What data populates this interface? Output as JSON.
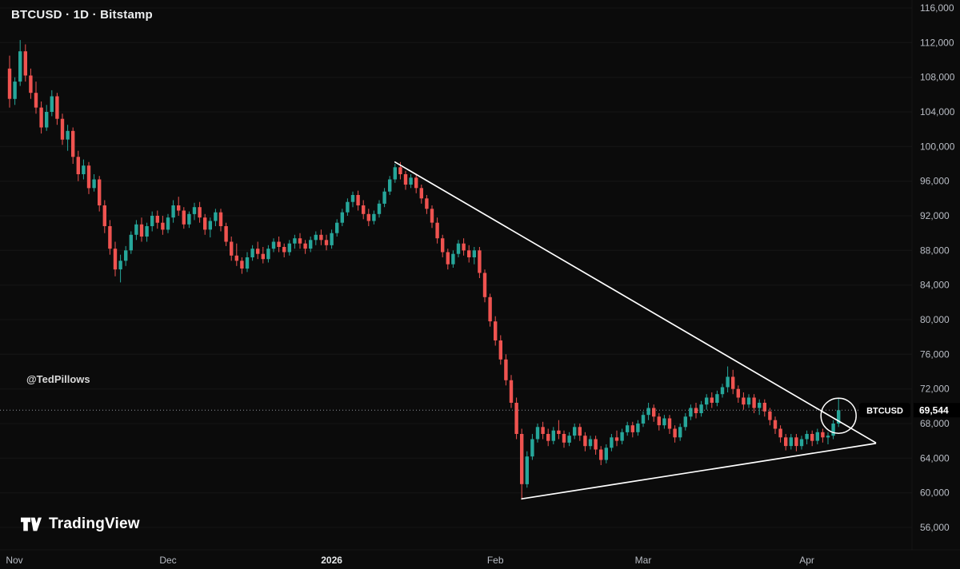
{
  "header": {
    "title": "BTCUSD · 1D · Bitstamp"
  },
  "watermark": {
    "text": "@TedPillows"
  },
  "logo": {
    "text": "TradingView"
  },
  "colors": {
    "background": "#0b0b0b",
    "up": "#26a69a",
    "down": "#ef5350",
    "trendline": "#ffffff",
    "axis_text": "#b9bdc5",
    "axis_text_emphasis": "#e6e8ea",
    "grid": "#161616",
    "price_line": "#8f939c",
    "label_bg": "#000000",
    "label_text": "#ffffff"
  },
  "chart_data": {
    "type": "candlestick",
    "symbol": "BTCUSD",
    "interval": "1D",
    "exchange": "Bitstamp",
    "last_price": 69544,
    "last_price_label": "69,544",
    "y_axis": {
      "tick_step": 4000,
      "ticks": [
        {
          "label": "116,000",
          "value": 116000
        },
        {
          "label": "112,000",
          "value": 112000
        },
        {
          "label": "108,000",
          "value": 108000
        },
        {
          "label": "104,000",
          "value": 104000
        },
        {
          "label": "100,000",
          "value": 100000
        },
        {
          "label": "96,000",
          "value": 96000
        },
        {
          "label": "92,000",
          "value": 92000
        },
        {
          "label": "88,000",
          "value": 88000
        },
        {
          "label": "84,000",
          "value": 84000
        },
        {
          "label": "80,000",
          "value": 80000
        },
        {
          "label": "76,000",
          "value": 76000
        },
        {
          "label": "72,000",
          "value": 72000
        },
        {
          "label": "68,000",
          "value": 68000
        },
        {
          "label": "64,000",
          "value": 64000
        },
        {
          "label": "60,000",
          "value": 60000
        },
        {
          "label": "56,000",
          "value": 56000
        }
      ]
    },
    "x_axis": {
      "labels": [
        {
          "label": "Nov",
          "index": 0,
          "emphasis": false
        },
        {
          "label": "Dec",
          "index": 30,
          "emphasis": false
        },
        {
          "label": "2026",
          "index": 61,
          "emphasis": true
        },
        {
          "label": "Feb",
          "index": 92,
          "emphasis": false
        },
        {
          "label": "Mar",
          "index": 120,
          "emphasis": false
        },
        {
          "label": "Apr",
          "index": 151,
          "emphasis": false
        }
      ]
    },
    "candles": [
      [
        109000,
        110500,
        104500,
        105500
      ],
      [
        105500,
        108000,
        104800,
        107500
      ],
      [
        107500,
        112300,
        107000,
        111000
      ],
      [
        111000,
        111800,
        107500,
        108200
      ],
      [
        108200,
        109000,
        105500,
        106200
      ],
      [
        106200,
        107500,
        103800,
        104500
      ],
      [
        104500,
        105200,
        101500,
        102200
      ],
      [
        102200,
        104800,
        101800,
        104000
      ],
      [
        104000,
        106500,
        103500,
        105800
      ],
      [
        105800,
        106200,
        102500,
        103200
      ],
      [
        103200,
        103800,
        100200,
        100800
      ],
      [
        100800,
        102500,
        99500,
        101800
      ],
      [
        101800,
        102200,
        98000,
        98800
      ],
      [
        98800,
        99500,
        96000,
        96800
      ],
      [
        96800,
        98500,
        96200,
        97800
      ],
      [
        97800,
        98200,
        94500,
        95200
      ],
      [
        95200,
        96800,
        94800,
        96200
      ],
      [
        96200,
        96600,
        92500,
        93200
      ],
      [
        93200,
        93800,
        90000,
        90800
      ],
      [
        90800,
        91500,
        87500,
        88200
      ],
      [
        88200,
        89000,
        85000,
        85800
      ],
      [
        85800,
        87500,
        84300,
        86800
      ],
      [
        86800,
        88500,
        86200,
        88000
      ],
      [
        88000,
        90200,
        87600,
        89800
      ],
      [
        89800,
        91500,
        89200,
        91000
      ],
      [
        91000,
        91800,
        89000,
        89600
      ],
      [
        89600,
        91200,
        89000,
        90800
      ],
      [
        90800,
        92500,
        90200,
        92000
      ],
      [
        92000,
        92600,
        90500,
        91200
      ],
      [
        91200,
        92000,
        89800,
        90400
      ],
      [
        90400,
        92200,
        90000,
        91800
      ],
      [
        91800,
        93800,
        91200,
        93200
      ],
      [
        93200,
        94200,
        92000,
        92600
      ],
      [
        92600,
        93000,
        90500,
        91000
      ],
      [
        91000,
        92500,
        90600,
        92200
      ],
      [
        92200,
        93500,
        91500,
        93000
      ],
      [
        93000,
        93600,
        91200,
        91800
      ],
      [
        91800,
        92200,
        89800,
        90400
      ],
      [
        90400,
        91800,
        89500,
        91400
      ],
      [
        91400,
        92800,
        90800,
        92400
      ],
      [
        92400,
        92800,
        90200,
        90800
      ],
      [
        90800,
        91200,
        88500,
        89000
      ],
      [
        89000,
        89600,
        86800,
        87400
      ],
      [
        87400,
        88800,
        86200,
        86800
      ],
      [
        86800,
        87200,
        85300,
        85900
      ],
      [
        85900,
        87800,
        85500,
        87200
      ],
      [
        87200,
        88600,
        86800,
        88200
      ],
      [
        88200,
        89000,
        87000,
        87600
      ],
      [
        87600,
        88400,
        86500,
        87000
      ],
      [
        87000,
        88600,
        86600,
        88200
      ],
      [
        88200,
        89400,
        87800,
        89000
      ],
      [
        89000,
        89600,
        87800,
        88400
      ],
      [
        88400,
        88800,
        87200,
        87800
      ],
      [
        87800,
        89200,
        87400,
        88800
      ],
      [
        88800,
        89800,
        88200,
        89400
      ],
      [
        89400,
        90000,
        88200,
        88800
      ],
      [
        88800,
        89200,
        87600,
        88200
      ],
      [
        88200,
        89600,
        87800,
        89200
      ],
      [
        89200,
        90200,
        88600,
        89800
      ],
      [
        89800,
        90400,
        88600,
        89200
      ],
      [
        89200,
        89800,
        88000,
        88600
      ],
      [
        88600,
        90400,
        88200,
        90000
      ],
      [
        90000,
        91600,
        89600,
        91200
      ],
      [
        91200,
        92800,
        90800,
        92400
      ],
      [
        92400,
        94000,
        92000,
        93600
      ],
      [
        93600,
        94800,
        93000,
        94400
      ],
      [
        94400,
        94900,
        92600,
        93200
      ],
      [
        93200,
        93800,
        91600,
        92200
      ],
      [
        92200,
        92800,
        90800,
        91400
      ],
      [
        91400,
        92600,
        91000,
        92200
      ],
      [
        92200,
        93800,
        91800,
        93400
      ],
      [
        93400,
        95200,
        93000,
        94800
      ],
      [
        94800,
        96600,
        94400,
        96200
      ],
      [
        96200,
        98000,
        95800,
        97600
      ],
      [
        97600,
        98200,
        96200,
        96800
      ],
      [
        96800,
        97200,
        95000,
        95600
      ],
      [
        95600,
        96800,
        95200,
        96400
      ],
      [
        96400,
        96800,
        94600,
        95200
      ],
      [
        95200,
        95600,
        93400,
        94000
      ],
      [
        94000,
        94400,
        92200,
        92800
      ],
      [
        92800,
        93200,
        90600,
        91200
      ],
      [
        91200,
        91800,
        88800,
        89400
      ],
      [
        89400,
        89800,
        87200,
        87800
      ],
      [
        87800,
        88200,
        85800,
        86400
      ],
      [
        86400,
        88000,
        86000,
        87600
      ],
      [
        87600,
        89200,
        87200,
        88800
      ],
      [
        88800,
        89400,
        87400,
        88000
      ],
      [
        88000,
        88600,
        86600,
        87200
      ],
      [
        87200,
        88400,
        86400,
        88000
      ],
      [
        88000,
        88400,
        84800,
        85400
      ],
      [
        85400,
        85800,
        82000,
        82600
      ],
      [
        82600,
        83000,
        79200,
        79800
      ],
      [
        79800,
        80400,
        77000,
        77600
      ],
      [
        77600,
        78200,
        74800,
        75400
      ],
      [
        75400,
        76000,
        72400,
        73000
      ],
      [
        73000,
        73600,
        69800,
        70400
      ],
      [
        70400,
        71000,
        66200,
        66800
      ],
      [
        66800,
        67400,
        59200,
        61000
      ],
      [
        61000,
        64800,
        60600,
        64200
      ],
      [
        64200,
        66800,
        63800,
        66200
      ],
      [
        66200,
        68000,
        65800,
        67600
      ],
      [
        67600,
        68200,
        66200,
        66800
      ],
      [
        66800,
        67400,
        65400,
        66000
      ],
      [
        66000,
        67600,
        65600,
        67200
      ],
      [
        67200,
        68400,
        66200,
        66800
      ],
      [
        66800,
        67200,
        65200,
        65800
      ],
      [
        65800,
        67000,
        65400,
        66600
      ],
      [
        66600,
        68000,
        66200,
        67600
      ],
      [
        67600,
        68000,
        66000,
        66600
      ],
      [
        66600,
        67000,
        64800,
        65400
      ],
      [
        65400,
        66600,
        65000,
        66200
      ],
      [
        66200,
        66600,
        64400,
        65000
      ],
      [
        65000,
        65400,
        63200,
        63800
      ],
      [
        63800,
        65600,
        63400,
        65200
      ],
      [
        65200,
        66800,
        64800,
        66400
      ],
      [
        66400,
        67200,
        65400,
        66000
      ],
      [
        66000,
        67400,
        65600,
        67000
      ],
      [
        67000,
        68200,
        66600,
        67800
      ],
      [
        67800,
        68200,
        66400,
        67000
      ],
      [
        67000,
        68400,
        66600,
        68000
      ],
      [
        68000,
        69400,
        67600,
        69000
      ],
      [
        69000,
        70400,
        68400,
        69800
      ],
      [
        69800,
        70200,
        68200,
        68800
      ],
      [
        68800,
        69200,
        67200,
        67800
      ],
      [
        67800,
        69000,
        67400,
        68600
      ],
      [
        68600,
        69000,
        66800,
        67400
      ],
      [
        67400,
        67800,
        65800,
        66400
      ],
      [
        66400,
        68000,
        66000,
        67600
      ],
      [
        67600,
        69200,
        67200,
        68800
      ],
      [
        68800,
        70200,
        68400,
        69800
      ],
      [
        69800,
        70400,
        68600,
        69200
      ],
      [
        69200,
        70600,
        68800,
        70200
      ],
      [
        70200,
        71400,
        69600,
        71000
      ],
      [
        71000,
        71600,
        69800,
        70400
      ],
      [
        70400,
        71800,
        70000,
        71400
      ],
      [
        71400,
        72600,
        71000,
        72200
      ],
      [
        72200,
        74600,
        71600,
        73400
      ],
      [
        73400,
        74200,
        71400,
        72000
      ],
      [
        72000,
        72400,
        70400,
        71000
      ],
      [
        71000,
        71600,
        69600,
        70200
      ],
      [
        70200,
        71400,
        69800,
        71000
      ],
      [
        71000,
        71400,
        69200,
        69800
      ],
      [
        69800,
        70800,
        69000,
        70400
      ],
      [
        70400,
        70800,
        68800,
        69400
      ],
      [
        69400,
        69800,
        67800,
        68400
      ],
      [
        68400,
        68800,
        66800,
        67400
      ],
      [
        67400,
        67800,
        65800,
        66400
      ],
      [
        66400,
        66800,
        64900,
        65400
      ],
      [
        65400,
        66800,
        65000,
        66400
      ],
      [
        66400,
        66800,
        64800,
        65400
      ],
      [
        65400,
        66600,
        65000,
        66200
      ],
      [
        66200,
        67200,
        65600,
        66800
      ],
      [
        66800,
        67200,
        65400,
        66000
      ],
      [
        66000,
        67400,
        65600,
        67000
      ],
      [
        67000,
        67400,
        65800,
        66400
      ],
      [
        66400,
        67000,
        65600,
        66600
      ],
      [
        66600,
        68400,
        66200,
        68000
      ],
      [
        68000,
        70900,
        67600,
        69544
      ]
    ],
    "annotations": {
      "trendlines": [
        {
          "from": {
            "x_index": 73,
            "price": 98200
          },
          "to": {
            "x_index": 164,
            "price": 65800
          }
        },
        {
          "from": {
            "x_index": 97,
            "price": 59300
          },
          "to": {
            "x_index": 164,
            "price": 65700
          }
        }
      ],
      "circle": {
        "x_index": 157,
        "price": 68900,
        "radius_px": 22
      }
    }
  }
}
